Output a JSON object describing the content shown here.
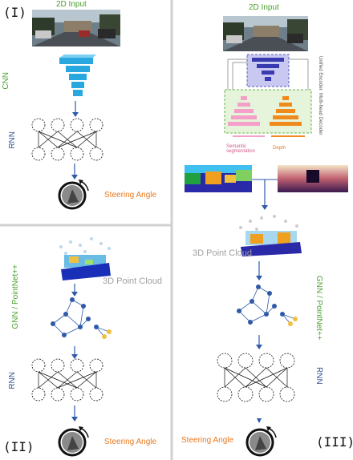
{
  "panel_I": {
    "roman": "(I)",
    "input_label": "2D Input",
    "cnn_label": "CNN",
    "rnn_label": "RNN",
    "steering_label": "Steering Angle"
  },
  "panel_II": {
    "roman": "(II)",
    "pointcloud_label": "3D Point Cloud",
    "gnn_label": "GNN / PointNet++",
    "rnn_label": "RNN",
    "steering_label": "Steering Angle"
  },
  "panel_III": {
    "roman": "(III)",
    "input_label": "2D Input",
    "encoder_label": "Unified Encoder",
    "decoder_label": "Multi-head Decoder",
    "semseg_label": "Semantic segmentation",
    "depth_label": "Depth",
    "pointcloud_label": "3D Point Cloud",
    "gnn_label": "GNN / PointNet++",
    "rnn_label": "RNN",
    "steering_label": "Steering Angle"
  },
  "colors": {
    "green": "#4aa02c",
    "blue": "#2f4f8f",
    "orange": "#e8781e",
    "cyan": "#29a8e0",
    "encoder": "#3a3ab0",
    "decoder_pink": "#f4a0c8",
    "decoder_orange": "#f08a1c"
  }
}
